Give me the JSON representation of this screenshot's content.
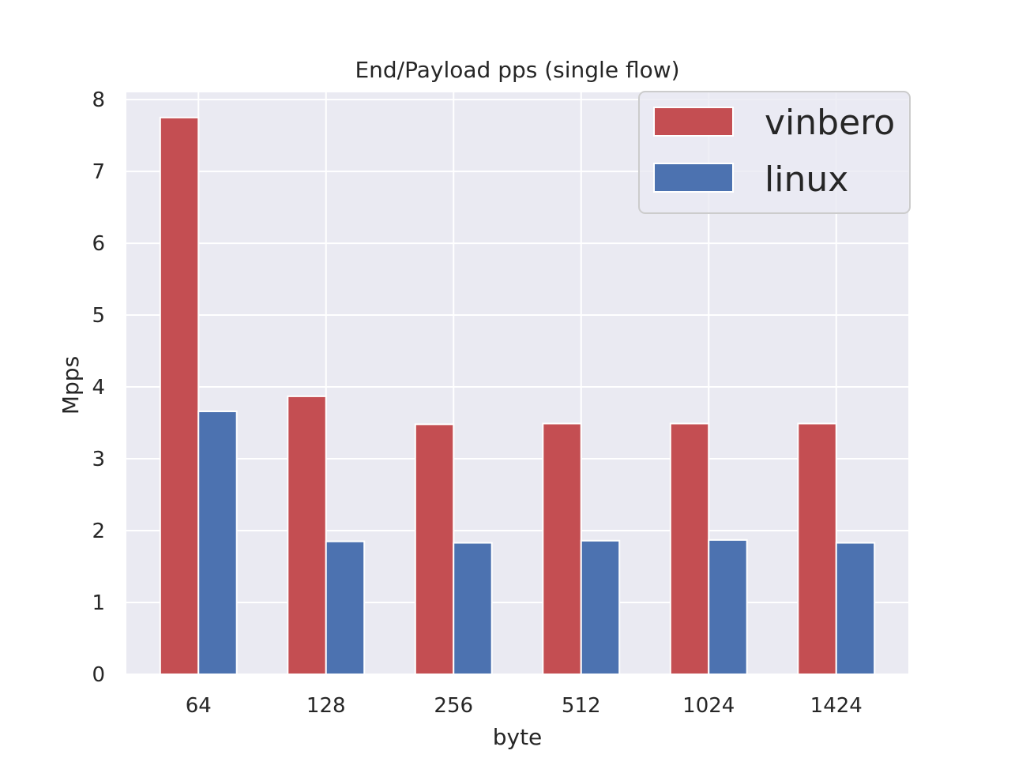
{
  "chart_data": {
    "type": "bar",
    "title": "End/Payload pps (single flow)",
    "xlabel": "byte",
    "ylabel": "Mpps",
    "categories": [
      "64",
      "128",
      "256",
      "512",
      "1024",
      "1424"
    ],
    "series": [
      {
        "name": "vinbero",
        "color": "#c44e52",
        "values": [
          7.75,
          3.87,
          3.48,
          3.49,
          3.49,
          3.49
        ]
      },
      {
        "name": "linux",
        "color": "#4c72b0",
        "values": [
          3.66,
          1.85,
          1.83,
          1.86,
          1.87,
          1.83
        ]
      }
    ],
    "ylim": [
      0,
      8.1
    ],
    "yticks": [
      "0",
      "1",
      "2",
      "3",
      "4",
      "5",
      "6",
      "7",
      "8"
    ],
    "grid": true,
    "legend_position": "top-right",
    "colors": {
      "background": "#eaeaf2",
      "grid": "#ffffff"
    }
  }
}
